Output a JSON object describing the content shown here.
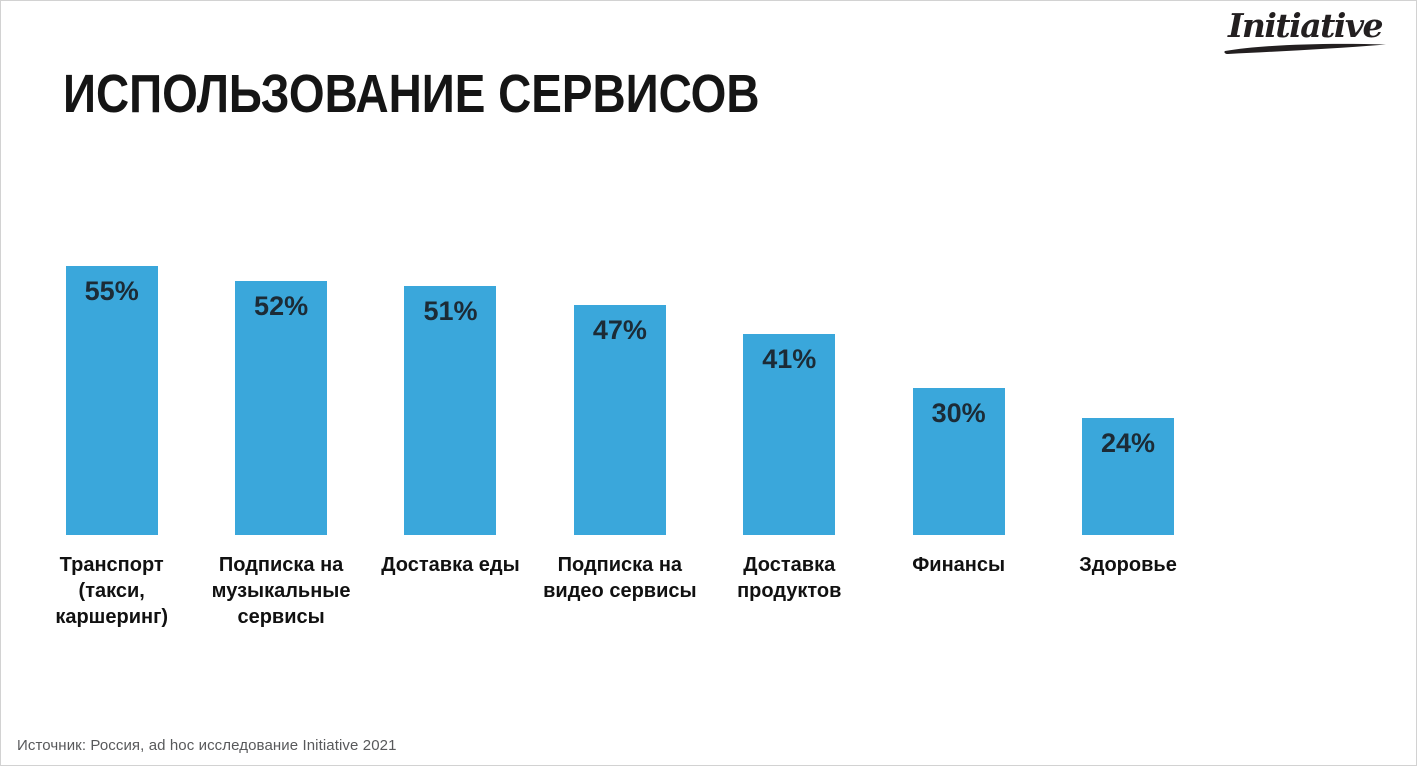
{
  "logo": {
    "text": "Initiative"
  },
  "title": "ИСПОЛЬЗОВАНИЕ СЕРВИСОВ",
  "source": "Источник:  Россия, ad hoc исследование Initiative 2021",
  "chart_data": {
    "type": "bar",
    "title": "ИСПОЛЬЗОВАНИЕ СЕРВИСОВ",
    "categories": [
      "Транспорт (такси, каршеринг)",
      "Подписка на музыкальные сервисы",
      "Доставка еды",
      "Подписка на видео сервисы",
      "Доставка продуктов",
      "Финансы",
      "Здоровье"
    ],
    "category_display": [
      "Транспорт\n(такси,\nкаршеринг)",
      "Подписка на\nмузыкальные\nсервисы",
      "Доставка еды",
      "Подписка на\nвидео сервисы",
      "Доставка\nпродуктов",
      "Финансы",
      "Здоровье"
    ],
    "values": [
      55,
      52,
      51,
      47,
      41,
      30,
      24
    ],
    "value_labels": [
      "55%",
      "52%",
      "51%",
      "47%",
      "41%",
      "30%",
      "24%"
    ],
    "xlabel": "",
    "ylabel": "",
    "ylim": [
      0,
      55
    ],
    "grid": false,
    "legend": false,
    "bar_color": "#3aa7db",
    "value_label_color": "#1c2b36"
  }
}
